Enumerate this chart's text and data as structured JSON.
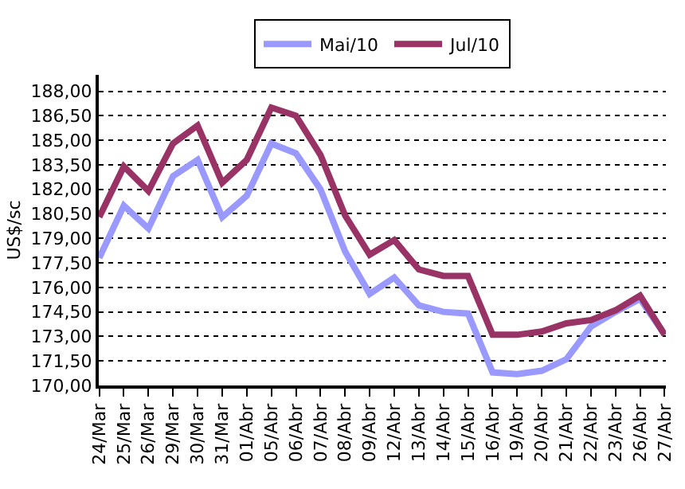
{
  "chart_data": {
    "type": "line",
    "ylabel": "US$/sc",
    "categories": [
      "24/Mar",
      "25/Mar",
      "26/Mar",
      "29/Mar",
      "30/Mar",
      "31/Mar",
      "01/Abr",
      "05/Abr",
      "06/Abr",
      "07/Abr",
      "08/Abr",
      "09/Abr",
      "12/Abr",
      "13/Abr",
      "14/Abr",
      "15/Abr",
      "16/Abr",
      "19/Abr",
      "20/Abr",
      "21/Abr",
      "22/Abr",
      "23/Abr",
      "26/Abr",
      "27/Abr"
    ],
    "series": [
      {
        "name": "Mai/10",
        "color": "#9999ff",
        "values": [
          177.8,
          181.0,
          179.6,
          182.8,
          183.8,
          180.3,
          181.6,
          184.8,
          184.2,
          182.0,
          178.2,
          175.6,
          176.6,
          174.9,
          174.5,
          174.4,
          170.8,
          170.7,
          170.9,
          171.6,
          173.6,
          174.5,
          175.3,
          173.1
        ]
      },
      {
        "name": "Jul/10",
        "color": "#993366",
        "values": [
          180.3,
          183.4,
          181.9,
          184.8,
          185.9,
          182.4,
          183.8,
          187.0,
          186.5,
          184.1,
          180.4,
          178.0,
          178.9,
          177.1,
          176.7,
          176.7,
          173.1,
          173.1,
          173.3,
          173.8,
          174.0,
          174.6,
          175.5,
          173.1
        ]
      }
    ],
    "ylim": [
      170,
      189
    ],
    "yticks": [
      {
        "value": 170,
        "label": "170,00"
      },
      {
        "value": 171.5,
        "label": "171,50"
      },
      {
        "value": 173,
        "label": "173,00"
      },
      {
        "value": 174.5,
        "label": "174,50"
      },
      {
        "value": 176,
        "label": "176,00"
      },
      {
        "value": 177.5,
        "label": "177,50"
      },
      {
        "value": 179,
        "label": "179,00"
      },
      {
        "value": 180.5,
        "label": "180,50"
      },
      {
        "value": 182,
        "label": "182,00"
      },
      {
        "value": 183.5,
        "label": "183,50"
      },
      {
        "value": 185,
        "label": "185,00"
      },
      {
        "value": 186.5,
        "label": "186,50"
      },
      {
        "value": 188,
        "label": "188,00"
      }
    ],
    "grid": "y",
    "legend": "top",
    "marker": "none",
    "line_style": "solid"
  }
}
